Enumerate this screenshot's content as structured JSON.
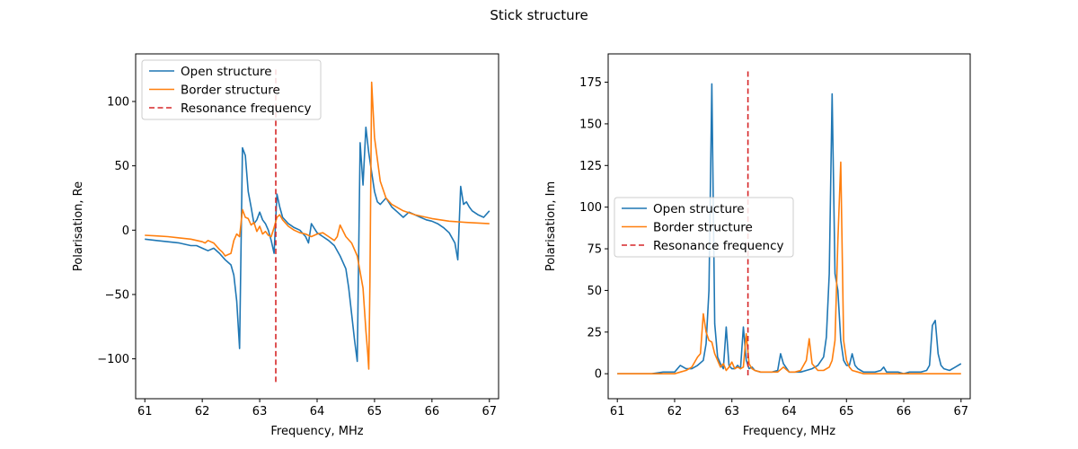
{
  "figure": {
    "suptitle": "Stick structure"
  },
  "colors": {
    "open": "#1f77b4",
    "border": "#ff7f0e",
    "resonance": "#d62728"
  },
  "chart_data": [
    {
      "type": "line",
      "title": "",
      "xlabel": "Frequency, MHz",
      "ylabel": "Polarisation, Re",
      "xlim": [
        60.84,
        67.16
      ],
      "ylim": [
        -131,
        137
      ],
      "xticks": [
        61,
        62,
        63,
        64,
        65,
        66,
        67
      ],
      "yticks": [
        -100,
        -50,
        0,
        50,
        100
      ],
      "grid": false,
      "legend": "upper-left",
      "series": [
        {
          "name": "Open structure",
          "color": "#1f77b4",
          "x": [
            61.0,
            61.2,
            61.4,
            61.6,
            61.8,
            61.9,
            62.0,
            62.1,
            62.2,
            62.3,
            62.4,
            62.5,
            62.55,
            62.6,
            62.65,
            62.7,
            62.75,
            62.8,
            62.85,
            62.9,
            62.95,
            63.0,
            63.05,
            63.1,
            63.15,
            63.2,
            63.25,
            63.3,
            63.35,
            63.4,
            63.5,
            63.6,
            63.7,
            63.8,
            63.85,
            63.9,
            64.0,
            64.1,
            64.2,
            64.3,
            64.4,
            64.5,
            64.55,
            64.6,
            64.65,
            64.7,
            64.75,
            64.8,
            64.85,
            64.9,
            64.95,
            65.0,
            65.05,
            65.1,
            65.2,
            65.3,
            65.4,
            65.5,
            65.6,
            65.7,
            65.8,
            65.9,
            66.0,
            66.1,
            66.2,
            66.3,
            66.4,
            66.45,
            66.5,
            66.55,
            66.6,
            66.65,
            66.7,
            66.8,
            66.9,
            67.0
          ],
          "y": [
            -7,
            -8,
            -9,
            -10,
            -12,
            -12,
            -14,
            -16,
            -14,
            -18,
            -23,
            -27,
            -35,
            -55,
            -92,
            64,
            58,
            30,
            18,
            5,
            8,
            14,
            8,
            5,
            0,
            -8,
            -18,
            28,
            18,
            10,
            5,
            2,
            0,
            -5,
            -10,
            5,
            -2,
            -5,
            -8,
            -12,
            -20,
            -30,
            -45,
            -65,
            -85,
            -102,
            68,
            35,
            80,
            60,
            45,
            30,
            22,
            20,
            25,
            18,
            14,
            10,
            14,
            12,
            10,
            8,
            7,
            5,
            2,
            -2,
            -10,
            -23,
            34,
            20,
            22,
            18,
            15,
            12,
            10,
            15
          ]
        },
        {
          "name": "Border structure",
          "color": "#ff7f0e",
          "x": [
            61.0,
            61.2,
            61.4,
            61.6,
            61.8,
            62.0,
            62.05,
            62.1,
            62.2,
            62.3,
            62.35,
            62.4,
            62.5,
            62.55,
            62.6,
            62.65,
            62.7,
            62.75,
            62.8,
            62.85,
            62.9,
            62.95,
            63.0,
            63.05,
            63.1,
            63.15,
            63.2,
            63.25,
            63.3,
            63.35,
            63.4,
            63.5,
            63.6,
            63.7,
            63.8,
            63.9,
            64.0,
            64.1,
            64.2,
            64.3,
            64.35,
            64.4,
            64.5,
            64.6,
            64.7,
            64.8,
            64.85,
            64.88,
            64.9,
            64.92,
            64.95,
            65.0,
            65.1,
            65.2,
            65.3,
            65.5,
            65.7,
            66.0,
            66.3,
            66.6,
            67.0
          ],
          "y": [
            -4,
            -4.5,
            -5,
            -6,
            -7,
            -9,
            -10,
            -8,
            -10,
            -15,
            -17,
            -20,
            -18,
            -8,
            -3,
            -5,
            16,
            10,
            9,
            4,
            6,
            -1,
            3,
            -3,
            -1,
            -4,
            -5,
            2,
            10,
            12,
            8,
            3,
            0,
            -2,
            -3,
            -5,
            -3,
            -2,
            -5,
            -8,
            -5,
            4,
            -5,
            -10,
            -20,
            -45,
            -78,
            -95,
            -108,
            -40,
            115,
            72,
            38,
            25,
            20,
            15,
            12,
            9,
            7,
            6,
            5
          ]
        },
        {
          "name": "Resonance frequency",
          "color": "#d62728",
          "dashed": true,
          "x": [
            63.28,
            63.28
          ],
          "y": [
            -118,
            127
          ]
        }
      ]
    },
    {
      "type": "line",
      "title": "",
      "xlabel": "Frequency, MHz",
      "ylabel": "Polarisation, Im",
      "xlim": [
        60.84,
        67.16
      ],
      "ylim": [
        -15,
        192
      ],
      "xticks": [
        61,
        62,
        63,
        64,
        65,
        66,
        67
      ],
      "yticks": [
        0,
        25,
        50,
        75,
        100,
        125,
        150,
        175
      ],
      "grid": false,
      "legend": "center-left",
      "series": [
        {
          "name": "Open structure",
          "color": "#1f77b4",
          "x": [
            61.0,
            61.3,
            61.6,
            61.8,
            62.0,
            62.1,
            62.2,
            62.3,
            62.4,
            62.5,
            62.55,
            62.6,
            62.65,
            62.7,
            62.75,
            62.8,
            62.85,
            62.9,
            62.95,
            63.0,
            63.05,
            63.1,
            63.15,
            63.2,
            63.25,
            63.3,
            63.35,
            63.4,
            63.5,
            63.6,
            63.7,
            63.8,
            63.85,
            63.9,
            64.0,
            64.1,
            64.2,
            64.3,
            64.4,
            64.5,
            64.6,
            64.65,
            64.7,
            64.75,
            64.8,
            64.85,
            64.9,
            64.95,
            65.0,
            65.05,
            65.1,
            65.15,
            65.2,
            65.25,
            65.3,
            65.4,
            65.5,
            65.6,
            65.65,
            65.7,
            65.8,
            65.9,
            66.0,
            66.1,
            66.2,
            66.3,
            66.4,
            66.45,
            66.5,
            66.55,
            66.6,
            66.65,
            66.7,
            66.8,
            66.9,
            67.0
          ],
          "y": [
            0,
            0,
            0,
            1,
            1,
            5,
            3,
            3,
            5,
            8,
            18,
            50,
            174,
            30,
            10,
            6,
            3,
            28,
            5,
            3,
            3,
            5,
            3,
            28,
            8,
            3,
            4,
            2,
            1,
            1,
            1,
            2,
            12,
            6,
            1,
            1,
            1,
            2,
            3,
            5,
            10,
            22,
            60,
            168,
            60,
            50,
            20,
            8,
            5,
            5,
            12,
            5,
            3,
            2,
            1,
            1,
            1,
            2,
            4,
            1,
            1,
            1,
            0,
            1,
            1,
            1,
            2,
            5,
            29,
            32,
            12,
            5,
            3,
            2,
            4,
            6
          ]
        },
        {
          "name": "Border structure",
          "color": "#ff7f0e",
          "x": [
            61.0,
            61.5,
            61.8,
            62.0,
            62.1,
            62.2,
            62.3,
            62.4,
            62.45,
            62.5,
            62.55,
            62.6,
            62.65,
            62.7,
            62.75,
            62.8,
            62.85,
            62.9,
            62.95,
            63.0,
            63.05,
            63.1,
            63.15,
            63.2,
            63.25,
            63.3,
            63.35,
            63.4,
            63.5,
            63.6,
            63.7,
            63.8,
            63.9,
            64.0,
            64.1,
            64.2,
            64.3,
            64.35,
            64.4,
            64.5,
            64.6,
            64.7,
            64.75,
            64.8,
            64.85,
            64.9,
            64.95,
            65.0,
            65.05,
            65.1,
            65.2,
            65.3,
            65.5,
            65.8,
            66.0,
            66.5,
            67.0
          ],
          "y": [
            0,
            0,
            0,
            0,
            1,
            2,
            4,
            10,
            12,
            36,
            25,
            20,
            19,
            12,
            8,
            4,
            6,
            2,
            4,
            7,
            3,
            4,
            3,
            4,
            24,
            6,
            3,
            2,
            1,
            1,
            1,
            1,
            4,
            1,
            1,
            2,
            8,
            21,
            6,
            2,
            2,
            4,
            8,
            20,
            80,
            127,
            20,
            8,
            4,
            2,
            1,
            0,
            0,
            0,
            0,
            0,
            0
          ]
        },
        {
          "name": "Resonance frequency",
          "color": "#d62728",
          "dashed": true,
          "x": [
            63.28,
            63.28
          ],
          "y": [
            -1,
            183
          ]
        }
      ]
    }
  ]
}
